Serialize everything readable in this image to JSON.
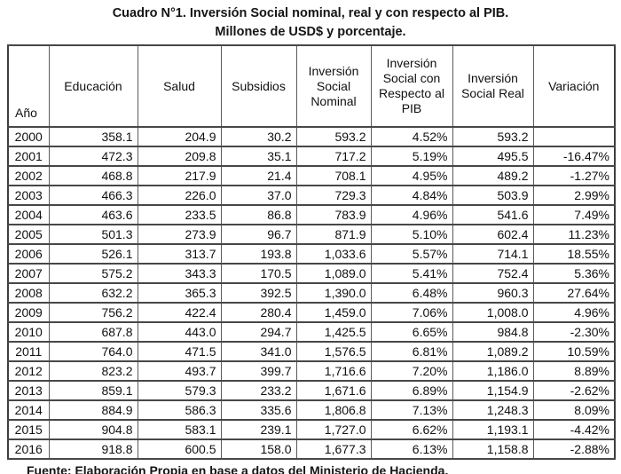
{
  "title": {
    "line1": "Cuadro N°1. Inversión Social nominal, real y con respecto al PIB.",
    "line2": "Millones de USD$ y porcentaje."
  },
  "table": {
    "columns": [
      "Año",
      "Educación",
      "Salud",
      "Subsidios",
      "Inversión Social Nominal",
      "Inversión Social con Respecto al PIB",
      "Inversión Social Real",
      "Variación"
    ],
    "rows": [
      [
        "2000",
        "358.1",
        "204.9",
        "30.2",
        "593.2",
        "4.52%",
        "593.2",
        ""
      ],
      [
        "2001",
        "472.3",
        "209.8",
        "35.1",
        "717.2",
        "5.19%",
        "495.5",
        "-16.47%"
      ],
      [
        "2002",
        "468.8",
        "217.9",
        "21.4",
        "708.1",
        "4.95%",
        "489.2",
        "-1.27%"
      ],
      [
        "2003",
        "466.3",
        "226.0",
        "37.0",
        "729.3",
        "4.84%",
        "503.9",
        "2.99%"
      ],
      [
        "2004",
        "463.6",
        "233.5",
        "86.8",
        "783.9",
        "4.96%",
        "541.6",
        "7.49%"
      ],
      [
        "2005",
        "501.3",
        "273.9",
        "96.7",
        "871.9",
        "5.10%",
        "602.4",
        "11.23%"
      ],
      [
        "2006",
        "526.1",
        "313.7",
        "193.8",
        "1,033.6",
        "5.57%",
        "714.1",
        "18.55%"
      ],
      [
        "2007",
        "575.2",
        "343.3",
        "170.5",
        "1,089.0",
        "5.41%",
        "752.4",
        "5.36%"
      ],
      [
        "2008",
        "632.2",
        "365.3",
        "392.5",
        "1,390.0",
        "6.48%",
        "960.3",
        "27.64%"
      ],
      [
        "2009",
        "756.2",
        "422.4",
        "280.4",
        "1,459.0",
        "7.06%",
        "1,008.0",
        "4.96%"
      ],
      [
        "2010",
        "687.8",
        "443.0",
        "294.7",
        "1,425.5",
        "6.65%",
        "984.8",
        "-2.30%"
      ],
      [
        "2011",
        "764.0",
        "471.5",
        "341.0",
        "1,576.5",
        "6.81%",
        "1,089.2",
        "10.59%"
      ],
      [
        "2012",
        "823.2",
        "493.7",
        "399.7",
        "1,716.6",
        "7.20%",
        "1,186.0",
        "8.89%"
      ],
      [
        "2013",
        "859.1",
        "579.3",
        "233.2",
        "1,671.6",
        "6.89%",
        "1,154.9",
        "-2.62%"
      ],
      [
        "2014",
        "884.9",
        "586.3",
        "335.6",
        "1,806.8",
        "7.13%",
        "1,248.3",
        "8.09%"
      ],
      [
        "2015",
        "904.8",
        "583.1",
        "239.1",
        "1,727.0",
        "6.62%",
        "1,193.1",
        "-4.42%"
      ],
      [
        "2016",
        "918.8",
        "600.5",
        "158.0",
        "1,677.3",
        "6.13%",
        "1,158.8",
        "-2.88%"
      ]
    ]
  },
  "footer": {
    "source": "Fuente: Elaboración Propia en base a datos del Ministerio de Hacienda."
  },
  "colors": {
    "background": "#ffffff",
    "text": "#111111",
    "border_outer": "#3d3d3d",
    "border_horizontal": "#474747",
    "border_vertical": "#5a5a5a"
  }
}
